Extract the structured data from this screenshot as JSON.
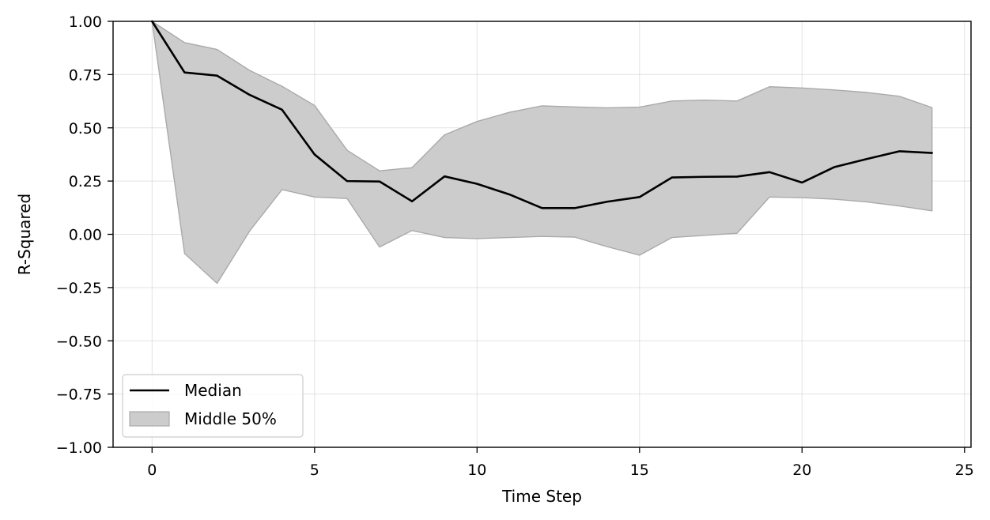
{
  "chart_data": {
    "type": "line",
    "title": "",
    "xlabel": "Time Step",
    "ylabel": "R-Squared",
    "xlim": [
      -1.2,
      25.2
    ],
    "ylim": [
      -1.0,
      1.0
    ],
    "xticks": [
      0,
      5,
      10,
      15,
      20,
      25
    ],
    "xtick_labels": [
      "0",
      "5",
      "10",
      "15",
      "20",
      "25"
    ],
    "yticks": [
      -1.0,
      -0.75,
      -0.5,
      -0.25,
      0.0,
      0.25,
      0.5,
      0.75,
      1.0
    ],
    "ytick_labels": [
      "−1.00",
      "−0.75",
      "−0.50",
      "−0.25",
      "0.00",
      "0.25",
      "0.50",
      "0.75",
      "1.00"
    ],
    "grid": true,
    "legend_position": "lower-left",
    "x": [
      0,
      1,
      2,
      3,
      4,
      5,
      6,
      7,
      8,
      9,
      10,
      11,
      12,
      13,
      14,
      15,
      16,
      17,
      18,
      19,
      20,
      21,
      22,
      23,
      24
    ],
    "series": [
      {
        "name": "Median",
        "kind": "line",
        "color": "#000000",
        "values": [
          1.0,
          0.76,
          0.745,
          0.655,
          0.585,
          0.375,
          0.25,
          0.248,
          0.155,
          0.272,
          0.237,
          0.187,
          0.123,
          0.123,
          0.153,
          0.175,
          0.267,
          0.27,
          0.271,
          0.292,
          0.243,
          0.316,
          0.354,
          0.39,
          0.382
        ]
      },
      {
        "name": "Middle 50%",
        "kind": "band",
        "color": "#cccccc",
        "edge_color": "#aaaaaa",
        "lower": [
          1.0,
          -0.09,
          -0.23,
          0.015,
          0.21,
          0.175,
          0.168,
          -0.06,
          0.018,
          -0.015,
          -0.02,
          -0.015,
          -0.01,
          -0.013,
          -0.058,
          -0.098,
          -0.015,
          -0.005,
          0.005,
          0.175,
          0.172,
          0.165,
          0.152,
          0.133,
          0.11
        ],
        "upper": [
          1.0,
          0.9,
          0.868,
          0.77,
          0.695,
          0.605,
          0.395,
          0.298,
          0.313,
          0.467,
          0.53,
          0.573,
          0.603,
          0.598,
          0.594,
          0.597,
          0.626,
          0.63,
          0.626,
          0.693,
          0.687,
          0.678,
          0.666,
          0.648,
          0.595
        ]
      }
    ]
  }
}
